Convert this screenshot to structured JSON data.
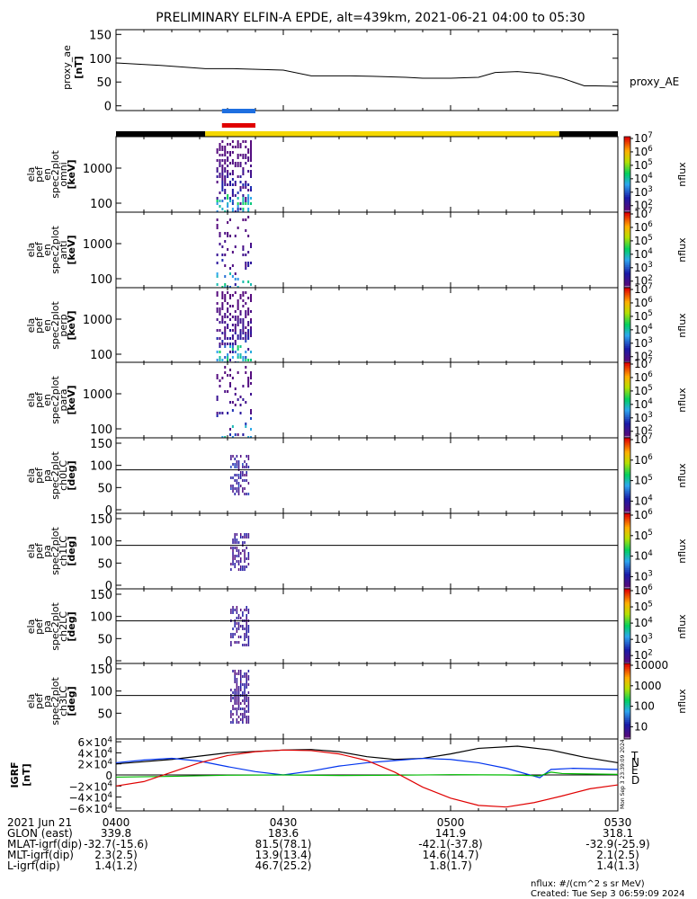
{
  "title": "PRELIMINARY ELFIN-A EPDE, alt=439km, 2021-06-21 04:00 to 05:30",
  "colorbar_unit": "nflux",
  "footer": {
    "units": "nflux: #/(cm^2 s sr MeV)",
    "created": "Created: Tue Sep  3 06:59:09 2024",
    "side_stamp": "Mon Sep  3 23:39:09 2024"
  },
  "ephemeris": {
    "times": [
      "0400",
      "0430",
      "0500",
      "0530"
    ],
    "rows": [
      {
        "label": "2021 Jun 21",
        "values": [
          "0400",
          "0430",
          "0500",
          "0530"
        ]
      },
      {
        "label": "GLON (east)",
        "values": [
          "339.8",
          "183.6",
          "141.9",
          "318.1"
        ]
      },
      {
        "label": "MLAT-igrf(dip)",
        "values": [
          "-32.7(-15.6)",
          "81.5(78.1)",
          "-42.1(-37.8)",
          "-32.9(-25.9)"
        ]
      },
      {
        "label": "MLT-igrf(dip)",
        "values": [
          "2.3(2.5)",
          "13.9(13.4)",
          "14.6(14.7)",
          "2.1(2.5)"
        ]
      },
      {
        "label": "L-igrf(dip)",
        "values": [
          "1.4(1.2)",
          "46.7(25.2)",
          "1.8(1.7)",
          "1.4(1.3)"
        ]
      }
    ]
  },
  "chart_data": [
    {
      "id": "proxy_ae",
      "type": "line",
      "ylabel": [
        "proxy_ae",
        "[nT]"
      ],
      "series_label": "proxy_AE",
      "ylim": [
        -10,
        160
      ],
      "yticks": [
        "0",
        "50",
        "100",
        "150"
      ],
      "x_minutes": [
        0,
        8,
        16,
        21,
        30,
        35,
        42,
        46,
        52,
        55,
        60,
        65,
        68,
        72,
        76,
        80,
        84,
        86,
        90
      ],
      "values": [
        90,
        85,
        78,
        78,
        75,
        63,
        63,
        62,
        60,
        58,
        58,
        60,
        70,
        72,
        68,
        58,
        42,
        42,
        41
      ]
    },
    {
      "id": "science_zones",
      "type": "bar",
      "zone_colors": [
        "#000000",
        "#f5d800",
        "#000000"
      ],
      "zones_minutes": [
        [
          0,
          16
        ],
        [
          16,
          79.5
        ],
        [
          79.5,
          90
        ]
      ],
      "markers": [
        {
          "color": "#1e6fe0",
          "start": 19,
          "end": 25
        },
        {
          "color": "#e00000",
          "start": 19,
          "end": 25
        }
      ]
    },
    {
      "id": "omni",
      "type": "heatmap",
      "ylabel": [
        "ela",
        "pef",
        "en",
        "spec2plot",
        "omni",
        "[keV]"
      ],
      "yticks": [
        "100",
        "1000"
      ],
      "cbar_ticks": [
        "10^7",
        "10^6",
        "10^5",
        "10^4",
        "10^3",
        "10^2"
      ]
    },
    {
      "id": "anti",
      "type": "heatmap",
      "ylabel": [
        "ela",
        "pef",
        "en",
        "spec2plot",
        "anti",
        "[keV]"
      ],
      "yticks": [
        "100",
        "1000"
      ],
      "cbar_ticks": [
        "10^7",
        "10^6",
        "10^5",
        "10^4",
        "10^3",
        "10^2"
      ]
    },
    {
      "id": "perp",
      "type": "heatmap",
      "ylabel": [
        "ela",
        "pef",
        "en",
        "spec2plot",
        "perp",
        "[keV]"
      ],
      "yticks": [
        "100",
        "1000"
      ],
      "cbar_ticks": [
        "10^7",
        "10^6",
        "10^5",
        "10^4",
        "10^3",
        "10^2"
      ]
    },
    {
      "id": "para",
      "type": "heatmap",
      "ylabel": [
        "ela",
        "pef",
        "en",
        "spec2plot",
        "para",
        "[keV]"
      ],
      "yticks": [
        "100",
        "1000"
      ],
      "cbar_ticks": [
        "10^7",
        "10^6",
        "10^5",
        "10^4",
        "10^3",
        "10^2"
      ]
    },
    {
      "id": "ch0LC",
      "type": "heatmap",
      "ylabel": [
        "ela",
        "pef",
        "pa",
        "spec2plot",
        "ch0LC",
        "[deg]"
      ],
      "yticks": [
        "0",
        "50",
        "100",
        "150"
      ],
      "cbar_ticks": [
        "10^7",
        "10^6",
        "10^5",
        "10^4"
      ]
    },
    {
      "id": "ch1LC",
      "type": "heatmap",
      "ylabel": [
        "ela",
        "pef",
        "pa",
        "spec2plot",
        "ch1LC",
        "[deg]"
      ],
      "yticks": [
        "0",
        "50",
        "100",
        "150"
      ],
      "cbar_ticks": [
        "10^6",
        "10^5",
        "10^4",
        "10^3"
      ]
    },
    {
      "id": "ch2LC",
      "type": "heatmap",
      "ylabel": [
        "ela",
        "pef",
        "pa",
        "spec2plot",
        "ch2LC",
        "[deg]"
      ],
      "yticks": [
        "0",
        "50",
        "100",
        "150"
      ],
      "cbar_ticks": [
        "10^6",
        "10^5",
        "10^4",
        "10^3",
        "10^2"
      ]
    },
    {
      "id": "ch3LC",
      "type": "heatmap",
      "ylabel": [
        "ela",
        "pef",
        "pa",
        "spec2plot",
        "ch3LC",
        "[deg]"
      ],
      "yticks": [
        "50",
        "100",
        "150"
      ],
      "cbar_ticks": [
        "10000",
        "1000",
        "100",
        "10"
      ]
    },
    {
      "id": "igrf",
      "type": "line",
      "ylabel": [
        "IGRF",
        "[nT]"
      ],
      "yticks": [
        "6×10^4",
        "4×10^4",
        "2×10^4",
        "0",
        "−2×10^4",
        "−4×10^4",
        "−6×10^4"
      ],
      "ylim": [
        -65000,
        65000
      ],
      "series": [
        {
          "name": "T",
          "color": "#000000",
          "x_minutes": [
            0,
            10,
            20,
            30,
            35,
            40,
            45,
            50,
            55,
            60,
            65,
            72,
            78,
            84,
            90
          ],
          "values": [
            20000,
            28000,
            40000,
            45000,
            46000,
            42000,
            33000,
            28000,
            30000,
            38000,
            48000,
            52000,
            45000,
            32000,
            22000
          ]
        },
        {
          "name": "N",
          "color": "#0033ee",
          "x_minutes": [
            0,
            5,
            10,
            15,
            20,
            25,
            30,
            35,
            40,
            45,
            50,
            55,
            60,
            65,
            70,
            76,
            78,
            82,
            90
          ],
          "values": [
            22000,
            27000,
            30000,
            25000,
            15000,
            6000,
            0,
            7000,
            16000,
            22000,
            26000,
            30000,
            28000,
            22000,
            12000,
            -5000,
            10000,
            12000,
            10000
          ]
        },
        {
          "name": "E",
          "color": "#00bb00",
          "x_minutes": [
            0,
            10,
            20,
            30,
            40,
            50,
            60,
            70,
            76,
            78,
            80,
            90
          ],
          "values": [
            -4000,
            -2500,
            -500,
            0,
            -1000,
            -500,
            500,
            0,
            -1500,
            5000,
            2500,
            1000
          ]
        },
        {
          "name": "D",
          "color": "#e00000",
          "x_minutes": [
            0,
            5,
            10,
            15,
            20,
            25,
            30,
            35,
            40,
            45,
            50,
            55,
            60,
            65,
            70,
            75,
            80,
            85,
            90
          ],
          "values": [
            -20000,
            -12000,
            5000,
            22000,
            35000,
            42000,
            45000,
            44000,
            38000,
            26000,
            5000,
            -22000,
            -42000,
            -55000,
            -58000,
            -50000,
            -38000,
            -25000,
            -18000
          ]
        }
      ]
    }
  ]
}
